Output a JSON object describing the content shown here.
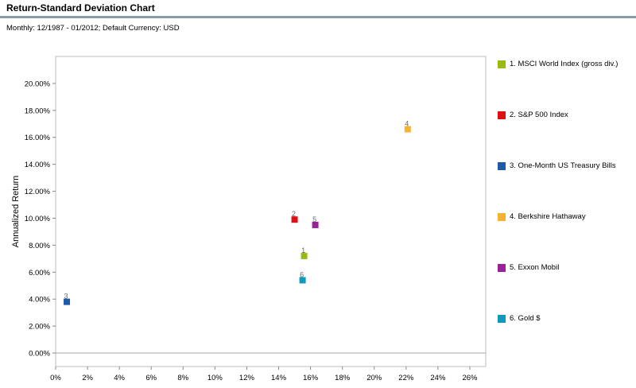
{
  "header": {
    "title": "Return-Standard Deviation Chart",
    "subtitle": "Monthly: 12/1987 - 01/2012; Default Currency: USD"
  },
  "chart_data": {
    "type": "scatter",
    "title": "Return-Standard Deviation Chart",
    "xlabel": "",
    "ylabel": "Annualized Return",
    "xlim": [
      0,
      27
    ],
    "ylim": [
      -1,
      22
    ],
    "x_ticks": [
      0,
      2,
      4,
      6,
      8,
      10,
      12,
      14,
      16,
      18,
      20,
      22,
      24,
      26
    ],
    "x_tick_labels": [
      "0%",
      "2%",
      "4%",
      "6%",
      "8%",
      "10%",
      "12%",
      "14%",
      "16%",
      "18%",
      "20%",
      "22%",
      "24%",
      "26%"
    ],
    "y_ticks": [
      0,
      2,
      4,
      6,
      8,
      10,
      12,
      14,
      16,
      18,
      20
    ],
    "y_tick_labels": [
      "0.00%",
      "2.00%",
      "4.00%",
      "6.00%",
      "8.00%",
      "10.00%",
      "12.00%",
      "14.00%",
      "16.00%",
      "18.00%",
      "20.00%"
    ],
    "grid": false,
    "legend_position": "right",
    "points": [
      {
        "label": "1",
        "legend": "1. MSCI World Index (gross div.)",
        "x": 15.6,
        "y": 7.2,
        "color": "#99bb11"
      },
      {
        "label": "2",
        "legend": "2. S&P 500 Index",
        "x": 15.0,
        "y": 9.9,
        "color": "#dd1111"
      },
      {
        "label": "3",
        "legend": "3. One-Month US Treasury Bills",
        "x": 0.7,
        "y": 3.8,
        "color": "#1f5aa8"
      },
      {
        "label": "4",
        "legend": "4. Berkshire Hathaway",
        "x": 22.1,
        "y": 16.6,
        "color": "#f7b233"
      },
      {
        "label": "5",
        "legend": "5. Exxon Mobil",
        "x": 16.3,
        "y": 9.5,
        "color": "#992299"
      },
      {
        "label": "6",
        "legend": "6. Gold $",
        "x": 15.5,
        "y": 5.4,
        "color": "#1199bb"
      }
    ]
  }
}
